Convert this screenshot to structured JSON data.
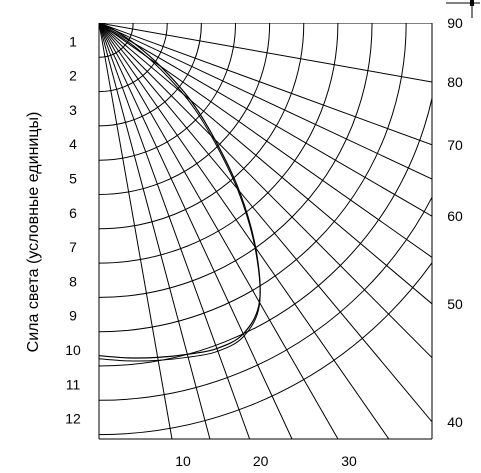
{
  "ylabel": "Сила света (условные единицы)",
  "radii": [
    "1",
    "2",
    "3",
    "4",
    "5",
    "6",
    "7",
    "8",
    "9",
    "10",
    "11",
    "12"
  ],
  "ray_angles": [
    {
      "id": "10",
      "label": "10",
      "angle": 10,
      "labeled": true
    },
    {
      "id": "20",
      "label": "20",
      "angle": 20,
      "labeled": true
    },
    {
      "id": "30",
      "label": "30",
      "angle": 30,
      "labeled": true
    },
    {
      "id": "40",
      "label": "40",
      "angle": 40,
      "labeled": true
    },
    {
      "id": "50",
      "label": "50",
      "angle": 50,
      "labeled": true
    },
    {
      "id": "60",
      "label": "60",
      "angle": 60,
      "labeled": true
    },
    {
      "id": "70",
      "label": "70",
      "angle": 70,
      "labeled": true
    },
    {
      "id": "80",
      "label": "80",
      "angle": 80,
      "labeled": true
    },
    {
      "id": "90",
      "label": "90",
      "angle": 90,
      "labeled": true
    },
    {
      "id": "15",
      "label": "",
      "angle": 15,
      "labeled": false
    },
    {
      "id": "25",
      "label": "",
      "angle": 25,
      "labeled": false
    },
    {
      "id": "35",
      "label": "",
      "angle": 35,
      "labeled": false
    },
    {
      "id": "45",
      "label": "",
      "angle": 45,
      "labeled": false
    },
    {
      "id": "55",
      "label": "",
      "angle": 55,
      "labeled": false
    },
    {
      "id": "65",
      "label": "",
      "angle": 65,
      "labeled": false
    }
  ],
  "curve_points": [
    {
      "angle": 0,
      "r": 9.7
    },
    {
      "angle": 5,
      "r": 9.8
    },
    {
      "angle": 10,
      "r": 9.9
    },
    {
      "angle": 15,
      "r": 10.0
    },
    {
      "angle": 20,
      "r": 10.1
    },
    {
      "angle": 25,
      "r": 10.0
    },
    {
      "angle": 30,
      "r": 9.4
    },
    {
      "angle": 35,
      "r": 8.0
    },
    {
      "angle": 40,
      "r": 6.4
    },
    {
      "angle": 45,
      "r": 4.8
    },
    {
      "angle": 50,
      "r": 3.5
    },
    {
      "angle": 55,
      "r": 2.2
    },
    {
      "angle": 60,
      "r": 1.2
    },
    {
      "angle": 65,
      "r": 0.5
    },
    {
      "angle": 70,
      "r": 0
    }
  ],
  "colors": {
    "line": "#000000",
    "background": "#ffffff"
  },
  "icons": {
    "corner": "marker-icon"
  }
}
